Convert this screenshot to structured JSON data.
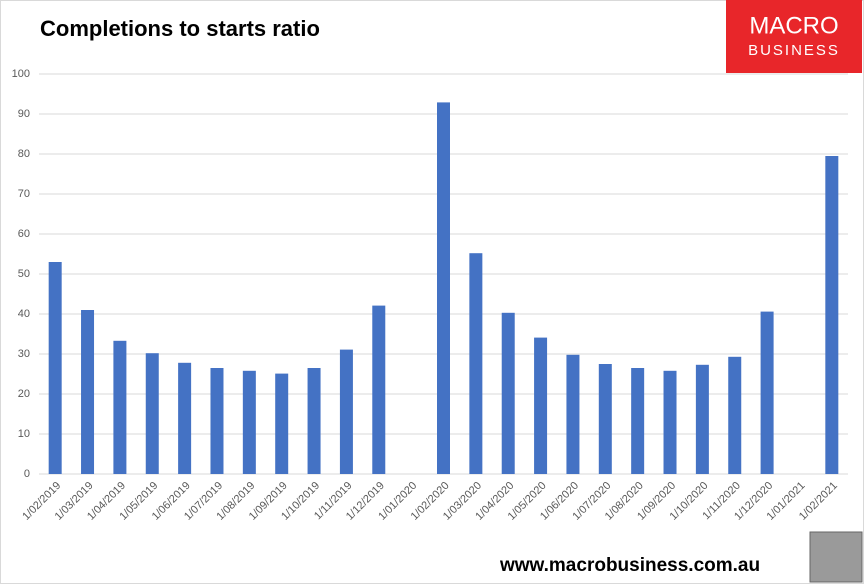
{
  "chart_data": {
    "type": "bar",
    "title": "Completions to starts ratio",
    "categories": [
      "1/02/2019",
      "1/03/2019",
      "1/04/2019",
      "1/05/2019",
      "1/06/2019",
      "1/07/2019",
      "1/08/2019",
      "1/09/2019",
      "1/10/2019",
      "1/11/2019",
      "1/12/2019",
      "1/01/2020",
      "1/02/2020",
      "1/03/2020",
      "1/04/2020",
      "1/05/2020",
      "1/06/2020",
      "1/07/2020",
      "1/08/2020",
      "1/09/2020",
      "1/10/2020",
      "1/11/2020",
      "1/12/2020",
      "1/01/2021",
      "1/02/2021"
    ],
    "values": [
      53,
      41,
      33.3,
      30.2,
      27.8,
      26.5,
      25.8,
      25.1,
      26.5,
      31.1,
      42.1,
      null,
      92.9,
      55.2,
      40.3,
      34.1,
      29.8,
      27.5,
      26.5,
      25.8,
      27.3,
      29.3,
      40.6,
      null,
      79.5
    ],
    "color": "#4472c4",
    "ylim": [
      0,
      100
    ],
    "yticks": [
      0,
      10,
      20,
      30,
      40,
      50,
      60,
      70,
      80,
      90,
      100
    ],
    "grid": true
  },
  "logo": {
    "line1": "MACRO",
    "line2": "BUSINESS"
  },
  "footer": "www.macrobusiness.com.au"
}
